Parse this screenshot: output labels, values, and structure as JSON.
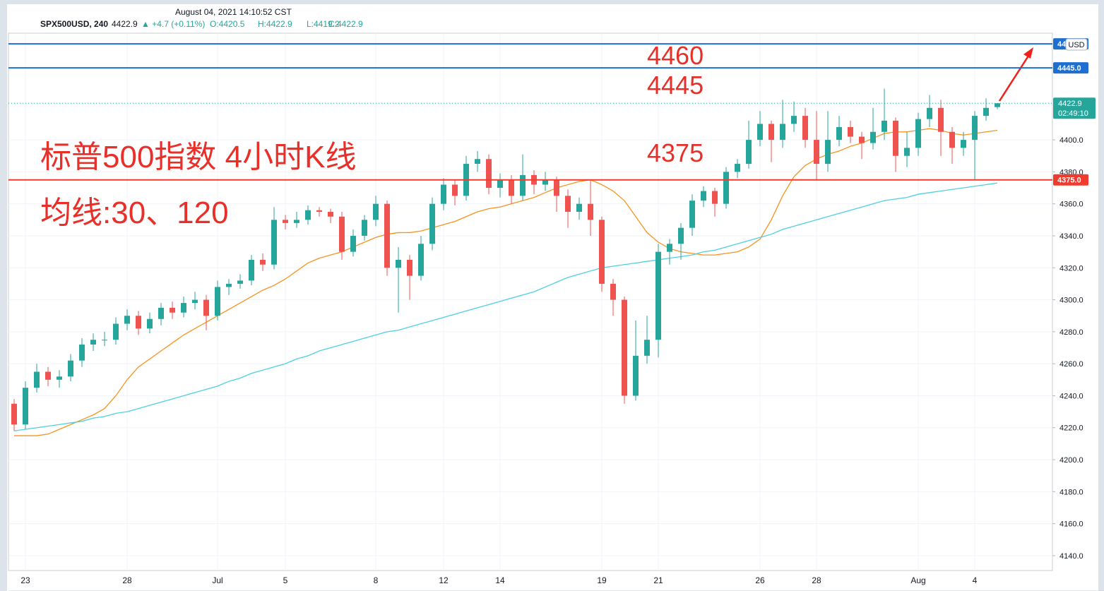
{
  "header": {
    "datetime": "August 04, 2021 14:10:52 CST",
    "symbol": "SPX500USD, 240",
    "last": "4422.9",
    "change": "▲ +4.7 (+0.11%)",
    "open": "O:4420.5",
    "high": "H:4422.9",
    "low": "L:4419.2",
    "close": "C:4422.9"
  },
  "chart_data": {
    "type": "candlestick",
    "up_color": "#26a69a",
    "down_color": "#ef5350",
    "categories": [
      null,
      "23",
      null,
      null,
      null,
      null,
      null,
      null,
      null,
      null,
      "28",
      null,
      null,
      null,
      null,
      null,
      null,
      null,
      "Jul",
      null,
      null,
      null,
      null,
      null,
      "5",
      null,
      null,
      null,
      null,
      null,
      null,
      null,
      "8",
      null,
      null,
      null,
      null,
      null,
      "12",
      null,
      null,
      null,
      null,
      "14",
      null,
      null,
      null,
      null,
      null,
      null,
      null,
      null,
      "19",
      null,
      null,
      null,
      null,
      "21",
      null,
      null,
      null,
      null,
      null,
      null,
      null,
      null,
      "26",
      null,
      null,
      null,
      null,
      "28",
      null,
      null,
      null,
      null,
      null,
      null,
      null,
      null,
      "Aug",
      null,
      null,
      null,
      null,
      "4",
      null,
      null
    ],
    "open": [
      4235,
      4222,
      4245,
      4255,
      4250,
      4252,
      4262,
      4272,
      4275,
      4275,
      4285,
      4290,
      4282,
      4288,
      4295,
      4292,
      4298,
      4300,
      4290,
      4308,
      4310,
      4312,
      4325,
      4322,
      4350,
      4348,
      4350,
      4356,
      4355,
      4352,
      4330,
      4340,
      4350,
      4360,
      4320,
      4325,
      4315,
      4335,
      4360,
      4372,
      4365,
      4385,
      4388,
      4370,
      4375,
      4365,
      4378,
      4372,
      4375,
      4365,
      4355,
      4360,
      4350,
      4310,
      4300,
      4240,
      4265,
      4275,
      4330,
      4335,
      4345,
      4362,
      4368,
      4360,
      4380,
      4385,
      4400,
      4410,
      4400,
      4410,
      4415,
      4400,
      4385,
      4400,
      4408,
      4402,
      4398,
      4405,
      4412,
      4390,
      4395,
      4413,
      4420,
      4405,
      4395,
      4400,
      4415,
      4420.5
    ],
    "high": [
      4238,
      4249,
      4260,
      4258,
      4256,
      4266,
      4276,
      4279,
      4280,
      4289,
      4294,
      4293,
      4292,
      4298,
      4299,
      4302,
      4305,
      4303,
      4312,
      4313,
      4316,
      4328,
      4329,
      4358,
      4353,
      4355,
      4359,
      4358,
      4357,
      4355,
      4344,
      4353,
      4365,
      4362,
      4333,
      4328,
      4340,
      4364,
      4376,
      4375,
      4390,
      4393,
      4391,
      4379,
      4378,
      4391,
      4381,
      4380,
      4377,
      4369,
      4364,
      4375,
      4352,
      4313,
      4302,
      4287,
      4290,
      4335,
      4338,
      4348,
      4366,
      4371,
      4370,
      4383,
      4388,
      4412,
      4418,
      4412,
      4425,
      4424,
      4420,
      4418,
      4418,
      4415,
      4412,
      4405,
      4420,
      4432,
      4414,
      4405,
      4417,
      4428,
      4425,
      4408,
      4405,
      4418,
      4426,
      4422.9
    ],
    "low": [
      4218,
      4219,
      4242,
      4246,
      4245,
      4249,
      4258,
      4268,
      4271,
      4272,
      4281,
      4278,
      4279,
      4284,
      4288,
      4289,
      4294,
      4281,
      4287,
      4303,
      4307,
      4309,
      4318,
      4319,
      4344,
      4345,
      4347,
      4352,
      4348,
      4325,
      4327,
      4337,
      4346,
      4315,
      4292,
      4300,
      4312,
      4331,
      4356,
      4359,
      4362,
      4380,
      4366,
      4364,
      4360,
      4362,
      4366,
      4368,
      4355,
      4345,
      4350,
      4340,
      4305,
      4290,
      4235,
      4237,
      4260,
      4264,
      4322,
      4325,
      4340,
      4358,
      4352,
      4357,
      4376,
      4382,
      4396,
      4386,
      4395,
      4405,
      4395,
      4375,
      4380,
      4396,
      4398,
      4388,
      4394,
      4400,
      4380,
      4383,
      4390,
      4408,
      4390,
      4385,
      4390,
      4375,
      4412,
      4419.2
    ],
    "close": [
      4222,
      4245,
      4255,
      4250,
      4252,
      4262,
      4272,
      4275,
      4275,
      4285,
      4290,
      4282,
      4288,
      4295,
      4292,
      4298,
      4300,
      4290,
      4308,
      4310,
      4312,
      4325,
      4322,
      4350,
      4348,
      4350,
      4356,
      4355,
      4352,
      4330,
      4340,
      4350,
      4360,
      4320,
      4325,
      4315,
      4335,
      4360,
      4372,
      4365,
      4385,
      4388,
      4370,
      4375,
      4365,
      4378,
      4372,
      4375,
      4365,
      4355,
      4360,
      4350,
      4310,
      4300,
      4240,
      4265,
      4275,
      4330,
      4335,
      4345,
      4362,
      4368,
      4360,
      4380,
      4385,
      4400,
      4410,
      4400,
      4410,
      4415,
      4400,
      4385,
      4400,
      4408,
      4402,
      4398,
      4405,
      4412,
      4390,
      4395,
      4413,
      4420,
      4405,
      4395,
      4400,
      4415,
      4420,
      4422.9
    ],
    "ma_lines": [
      {
        "color": "#f7931e",
        "values": [
          4215,
          4215,
          4215,
          4216,
          4219,
          4222,
          4225,
          4228,
          4232,
          4240,
          4250,
          4258,
          4263,
          4268,
          4273,
          4278,
          4282,
          4286,
          4290,
          4294,
          4298,
          4302,
          4306,
          4309,
          4313,
          4318,
          4323,
          4326,
          4328,
          4330,
          4333,
          4336,
          4339,
          4341,
          4342,
          4342,
          4343,
          4345,
          4347,
          4349,
          4352,
          4355,
          4357,
          4358,
          4360,
          4362,
          4364,
          4367,
          4370,
          4372,
          4374,
          4375,
          4372,
          4368,
          4362,
          4352,
          4342,
          4336,
          4332,
          4330,
          4329,
          4328,
          4328,
          4329,
          4330,
          4333,
          4338,
          4350,
          4365,
          4377,
          4384,
          4388,
          4391,
          4393,
          4396,
          4398,
          4401,
          4404,
          4405,
          4405,
          4406,
          4407,
          4406,
          4404,
          4403,
          4404,
          4405,
          4406
        ]
      },
      {
        "color": "#4dd0e1",
        "values": [
          4218,
          4219,
          4220,
          4221,
          4222,
          4223,
          4224,
          4226,
          4227,
          4229,
          4230,
          4232,
          4234,
          4236,
          4238,
          4240,
          4242,
          4244,
          4246,
          4249,
          4251,
          4254,
          4256,
          4258,
          4260,
          4263,
          4265,
          4268,
          4270,
          4272,
          4274,
          4276,
          4278,
          4280,
          4281,
          4283,
          4285,
          4287,
          4289,
          4291,
          4293,
          4295,
          4297,
          4299,
          4301,
          4303,
          4305,
          4308,
          4311,
          4314,
          4316,
          4318,
          4320,
          4321,
          4322,
          4323,
          4324,
          4325,
          4326,
          4327,
          4328,
          4330,
          4331,
          4333,
          4335,
          4337,
          4339,
          4341,
          4344,
          4346,
          4348,
          4350,
          4352,
          4354,
          4356,
          4358,
          4360,
          4362,
          4363,
          4364,
          4366,
          4367,
          4368,
          4369,
          4370,
          4371,
          4372,
          4373
        ]
      }
    ],
    "ylim": [
      4130.7,
      4466.7
    ],
    "yticks": [
      {
        "value": 4140,
        "label": "4140.0"
      },
      {
        "value": 4160,
        "label": "4160.0"
      },
      {
        "value": 4180,
        "label": "4180.0"
      },
      {
        "value": 4200,
        "label": "4200.0"
      },
      {
        "value": 4220,
        "label": "4220.0"
      },
      {
        "value": 4240,
        "label": "4240.0"
      },
      {
        "value": 4260,
        "label": "4260.0"
      },
      {
        "value": 4280,
        "label": "4280.0"
      },
      {
        "value": 4300,
        "label": "4300.0"
      },
      {
        "value": 4320,
        "label": "4320.0"
      },
      {
        "value": 4340,
        "label": "4340.0"
      },
      {
        "value": 4360,
        "label": "4360.0"
      },
      {
        "value": 4380,
        "label": "4380.0"
      },
      {
        "value": 4400,
        "label": "4400.0"
      }
    ],
    "grid": true,
    "hlines": [
      {
        "value": 4460,
        "color": "#1e6fd0",
        "label": "44"
      },
      {
        "value": 4445,
        "color": "#1e6fd0",
        "label": "4445.0"
      },
      {
        "value": 4375,
        "color": "#f23b2f",
        "label": "4375.0"
      }
    ],
    "last_price": {
      "value": 4422.9,
      "label": "4422.9",
      "countdown": "02:49:10",
      "color": "#26a69a"
    },
    "currency": "USD",
    "annotations": [
      "4460",
      "4445",
      "4375"
    ],
    "title": "标普500指数 4小时K线",
    "subtitle": "均线:30、120"
  }
}
